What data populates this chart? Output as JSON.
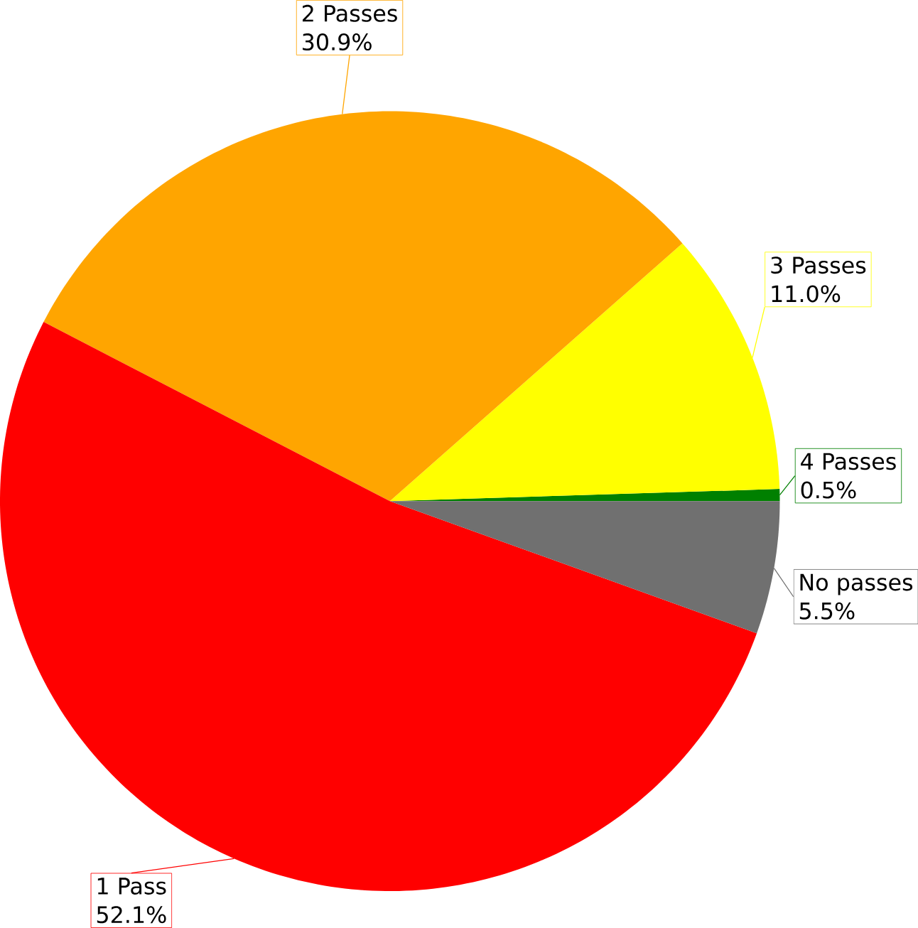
{
  "chart_data": {
    "type": "pie",
    "categories": [
      "4 Passes",
      "3 Passes",
      "2 Passes",
      "1 Pass",
      "No passes"
    ],
    "values": [
      0.5,
      11.0,
      30.9,
      52.1,
      5.5
    ],
    "colors": [
      "#008000",
      "#ffff00",
      "#ffa500",
      "#ff0000",
      "#707070"
    ],
    "value_labels": [
      "0.5%",
      "11.0%",
      "30.9%",
      "52.1%",
      "5.5%"
    ]
  }
}
